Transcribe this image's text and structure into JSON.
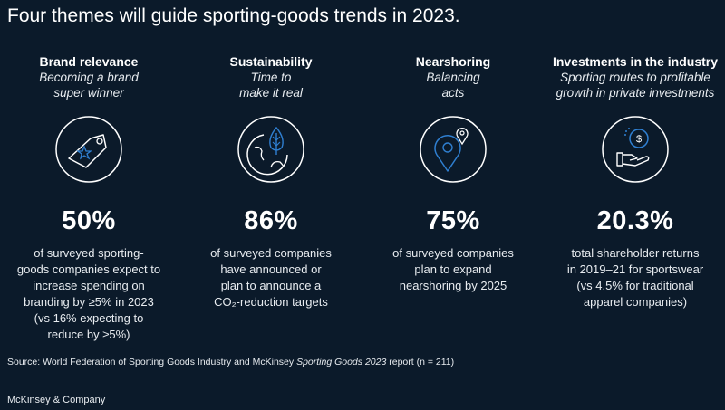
{
  "title": "Four themes will guide sporting-goods trends in 2023.",
  "themes": [
    {
      "heading": "Brand relevance",
      "subtitle_lines": [
        "Becoming a brand",
        "super winner"
      ],
      "icon": "price-tag-star-icon",
      "stat": "50%",
      "desc_lines": [
        "of surveyed sporting-",
        "goods companies expect to",
        "increase spending on",
        "branding by ≥5% in 2023",
        "(vs 16% expecting to",
        "reduce by ≥5%)"
      ]
    },
    {
      "heading": "Sustainability",
      "subtitle_lines": [
        "Time to",
        "make it real"
      ],
      "icon": "globe-leaf-icon",
      "stat": "86%",
      "desc_lines": [
        "of surveyed companies",
        "have announced or",
        "plan to announce a",
        "CO₂-reduction targets"
      ]
    },
    {
      "heading": "Nearshoring",
      "subtitle_lines": [
        "Balancing",
        "acts"
      ],
      "icon": "location-pin-icon",
      "stat": "75%",
      "desc_lines": [
        "of surveyed companies",
        "plan to expand",
        "nearshoring by 2025"
      ]
    },
    {
      "heading": "Investments in the industry",
      "subtitle_lines": [
        "Sporting routes to profitable",
        "growth in private investments"
      ],
      "icon": "hand-coin-icon",
      "stat": "20.3%",
      "desc_lines": [
        "total shareholder returns",
        "in 2019–21 for sportswear",
        "(vs 4.5% for traditional",
        "apparel companies)"
      ]
    }
  ],
  "source": {
    "prefix": "Source: World Federation of Sporting Goods Industry and McKinsey ",
    "italic": "Sporting Goods 2023",
    "suffix": " report (n = 211)"
  },
  "footer": "McKinsey & Company",
  "colors": {
    "background": "#0b1a2a",
    "accent": "#2f7fd1",
    "line": "#ffffff"
  }
}
